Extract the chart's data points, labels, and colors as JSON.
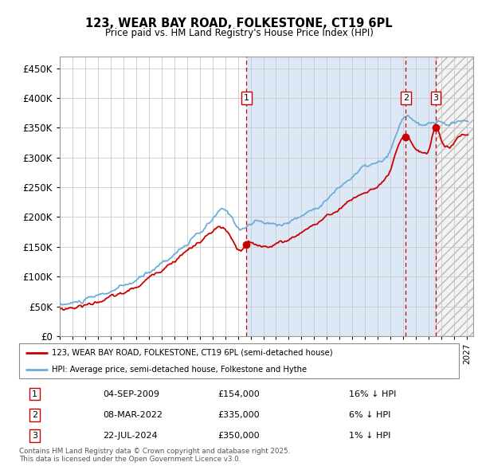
{
  "title": "123, WEAR BAY ROAD, FOLKESTONE, CT19 6PL",
  "subtitle": "Price paid vs. HM Land Registry's House Price Index (HPI)",
  "legend_line1": "123, WEAR BAY ROAD, FOLKESTONE, CT19 6PL (semi-detached house)",
  "legend_line2": "HPI: Average price, semi-detached house, Folkestone and Hythe",
  "footer": "Contains HM Land Registry data © Crown copyright and database right 2025.\nThis data is licensed under the Open Government Licence v3.0.",
  "transactions": [
    {
      "label": "1",
      "date": "04-SEP-2009",
      "price": "£154,000",
      "hpi": "16% ↓ HPI",
      "x_year": 2009.67,
      "price_val": 154000
    },
    {
      "label": "2",
      "date": "08-MAR-2022",
      "price": "£335,000",
      "hpi": "6% ↓ HPI",
      "x_year": 2022.19,
      "price_val": 335000
    },
    {
      "label": "3",
      "date": "22-JUL-2024",
      "price": "£350,000",
      "hpi": "1% ↓ HPI",
      "x_year": 2024.56,
      "price_val": 350000
    }
  ],
  "hpi_color": "#6baed6",
  "price_color": "#cc0000",
  "vline_color": "#cc0000",
  "grid_color": "#c8c8c8",
  "background_color": "#dce8f5",
  "chart_bg_pre": "#ffffff",
  "hatch_bg": "#e8e8e8",
  "ylim": [
    0,
    470000
  ],
  "xlim_start": 1995,
  "xlim_end": 2027.5,
  "yticks": [
    0,
    50000,
    100000,
    150000,
    200000,
    250000,
    300000,
    350000,
    400000,
    450000
  ],
  "shade_start": 2009.67,
  "hatch_start": 2024.58
}
